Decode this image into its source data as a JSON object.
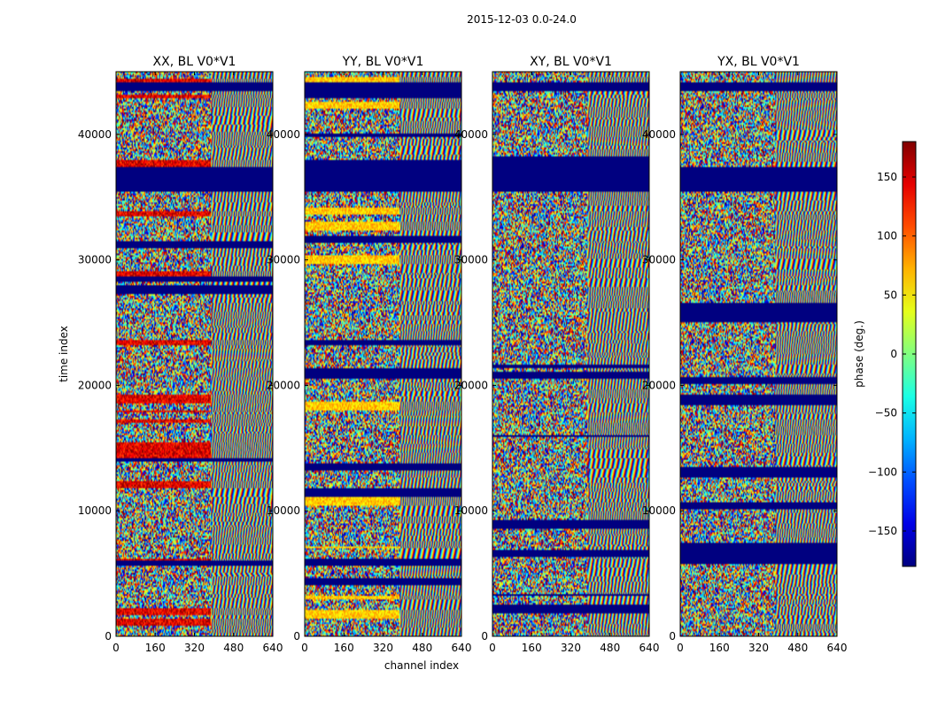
{
  "figure": {
    "suptitle": "2015-12-03 0.0-24.0"
  },
  "chart_data": {
    "type": "heatmap",
    "colormap": "jet",
    "description_note": "Four waterfall panels of visibility phase vs channel and time for baseline V0*V1.",
    "x_axis": {
      "label": "channel index",
      "range": [
        0,
        640
      ],
      "ticks": [
        0,
        160,
        320,
        480,
        640
      ]
    },
    "y_axis": {
      "label": "time index",
      "range": [
        0,
        45000
      ],
      "ticks": [
        0,
        10000,
        20000,
        30000,
        40000
      ]
    },
    "panels": [
      {
        "title": "XX, BL V0*V1",
        "pol": "XX"
      },
      {
        "title": "YY, BL V0*V1",
        "pol": "YY"
      },
      {
        "title": "XY, BL V0*V1",
        "pol": "XY"
      },
      {
        "title": "YX, BL V0*V1",
        "pol": "YX"
      }
    ],
    "colorbar": {
      "label": "phase (deg.)",
      "range": [
        -180,
        180
      ],
      "ticks": [
        -150,
        -100,
        -50,
        0,
        50,
        100,
        150
      ],
      "tick_labels": [
        "−150",
        "−100",
        "−50",
        "0",
        "50",
        "100",
        "150"
      ]
    },
    "flagged_time_ranges": [
      [
        35500,
        37500
      ],
      [
        43500,
        44200
      ]
    ]
  }
}
